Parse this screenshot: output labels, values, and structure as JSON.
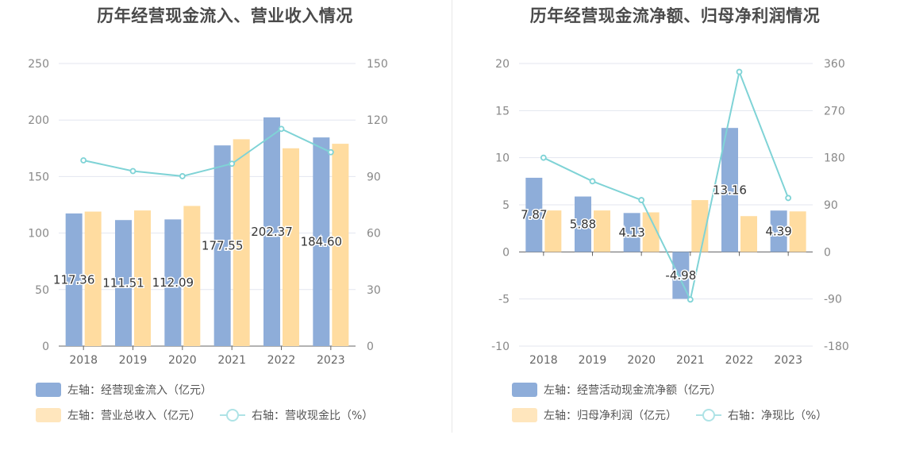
{
  "chart_data": [
    {
      "type": "bar",
      "title": "历年经营现金流入、营业收入情况",
      "categories": [
        "2018",
        "2019",
        "2020",
        "2021",
        "2022",
        "2023"
      ],
      "left_axis": {
        "ticks": [
          "0",
          "50",
          "100",
          "150",
          "200",
          "250"
        ],
        "range": [
          0,
          250
        ]
      },
      "right_axis": {
        "ticks": [
          "0",
          "30",
          "60",
          "90",
          "120",
          "150"
        ],
        "range": [
          0,
          150
        ]
      },
      "series": [
        {
          "name": "左轴：经营现金流入（亿元）",
          "axis": "left",
          "type": "bar",
          "color": "#8eadd9",
          "values": [
            117.36,
            111.51,
            112.09,
            177.55,
            202.37,
            184.6
          ],
          "labels": [
            "117.36",
            "111.51",
            "112.09",
            "177.55",
            "202.37",
            "184.60"
          ]
        },
        {
          "name": "左轴：营业总收入（亿元）",
          "axis": "left",
          "type": "bar",
          "color": "#ffdca0",
          "values": [
            119,
            120,
            124,
            183,
            175,
            179
          ]
        },
        {
          "name": "右轴：营收现金比（%）",
          "axis": "right",
          "type": "line",
          "color": "#7fd3d6",
          "values": [
            98.6,
            92.9,
            90.2,
            96.8,
            115.3,
            102.9
          ]
        }
      ],
      "grid": true,
      "legend_position": "bottom-left"
    },
    {
      "type": "bar",
      "title": "历年经营现金流净额、归母净利润情况",
      "categories": [
        "2018",
        "2019",
        "2020",
        "2021",
        "2022",
        "2023"
      ],
      "left_axis": {
        "ticks": [
          "-10",
          "-5",
          "0",
          "5",
          "10",
          "15",
          "20"
        ],
        "range": [
          -10,
          20
        ]
      },
      "right_axis": {
        "ticks": [
          "-180",
          "-90",
          "0",
          "90",
          "180",
          "270",
          "360"
        ],
        "range": [
          -180,
          360
        ]
      },
      "series": [
        {
          "name": "左轴：经营活动现金流净额（亿元）",
          "axis": "left",
          "type": "bar",
          "color": "#8eadd9",
          "values": [
            7.87,
            5.88,
            4.13,
            -4.98,
            13.16,
            4.39
          ],
          "labels": [
            "7.87",
            "5.88",
            "4.13",
            "-4.98",
            "13.16",
            "4.39"
          ]
        },
        {
          "name": "左轴：归母净利润（亿元）",
          "axis": "left",
          "type": "bar",
          "color": "#ffdca0",
          "values": [
            4.4,
            4.4,
            4.2,
            5.5,
            3.8,
            4.3
          ]
        },
        {
          "name": "右轴：净现比（%）",
          "axis": "right",
          "type": "line",
          "color": "#7fd3d6",
          "values": [
            180,
            135,
            99,
            -91,
            344,
            103
          ]
        }
      ],
      "grid": true,
      "legend_position": "bottom-left"
    }
  ]
}
